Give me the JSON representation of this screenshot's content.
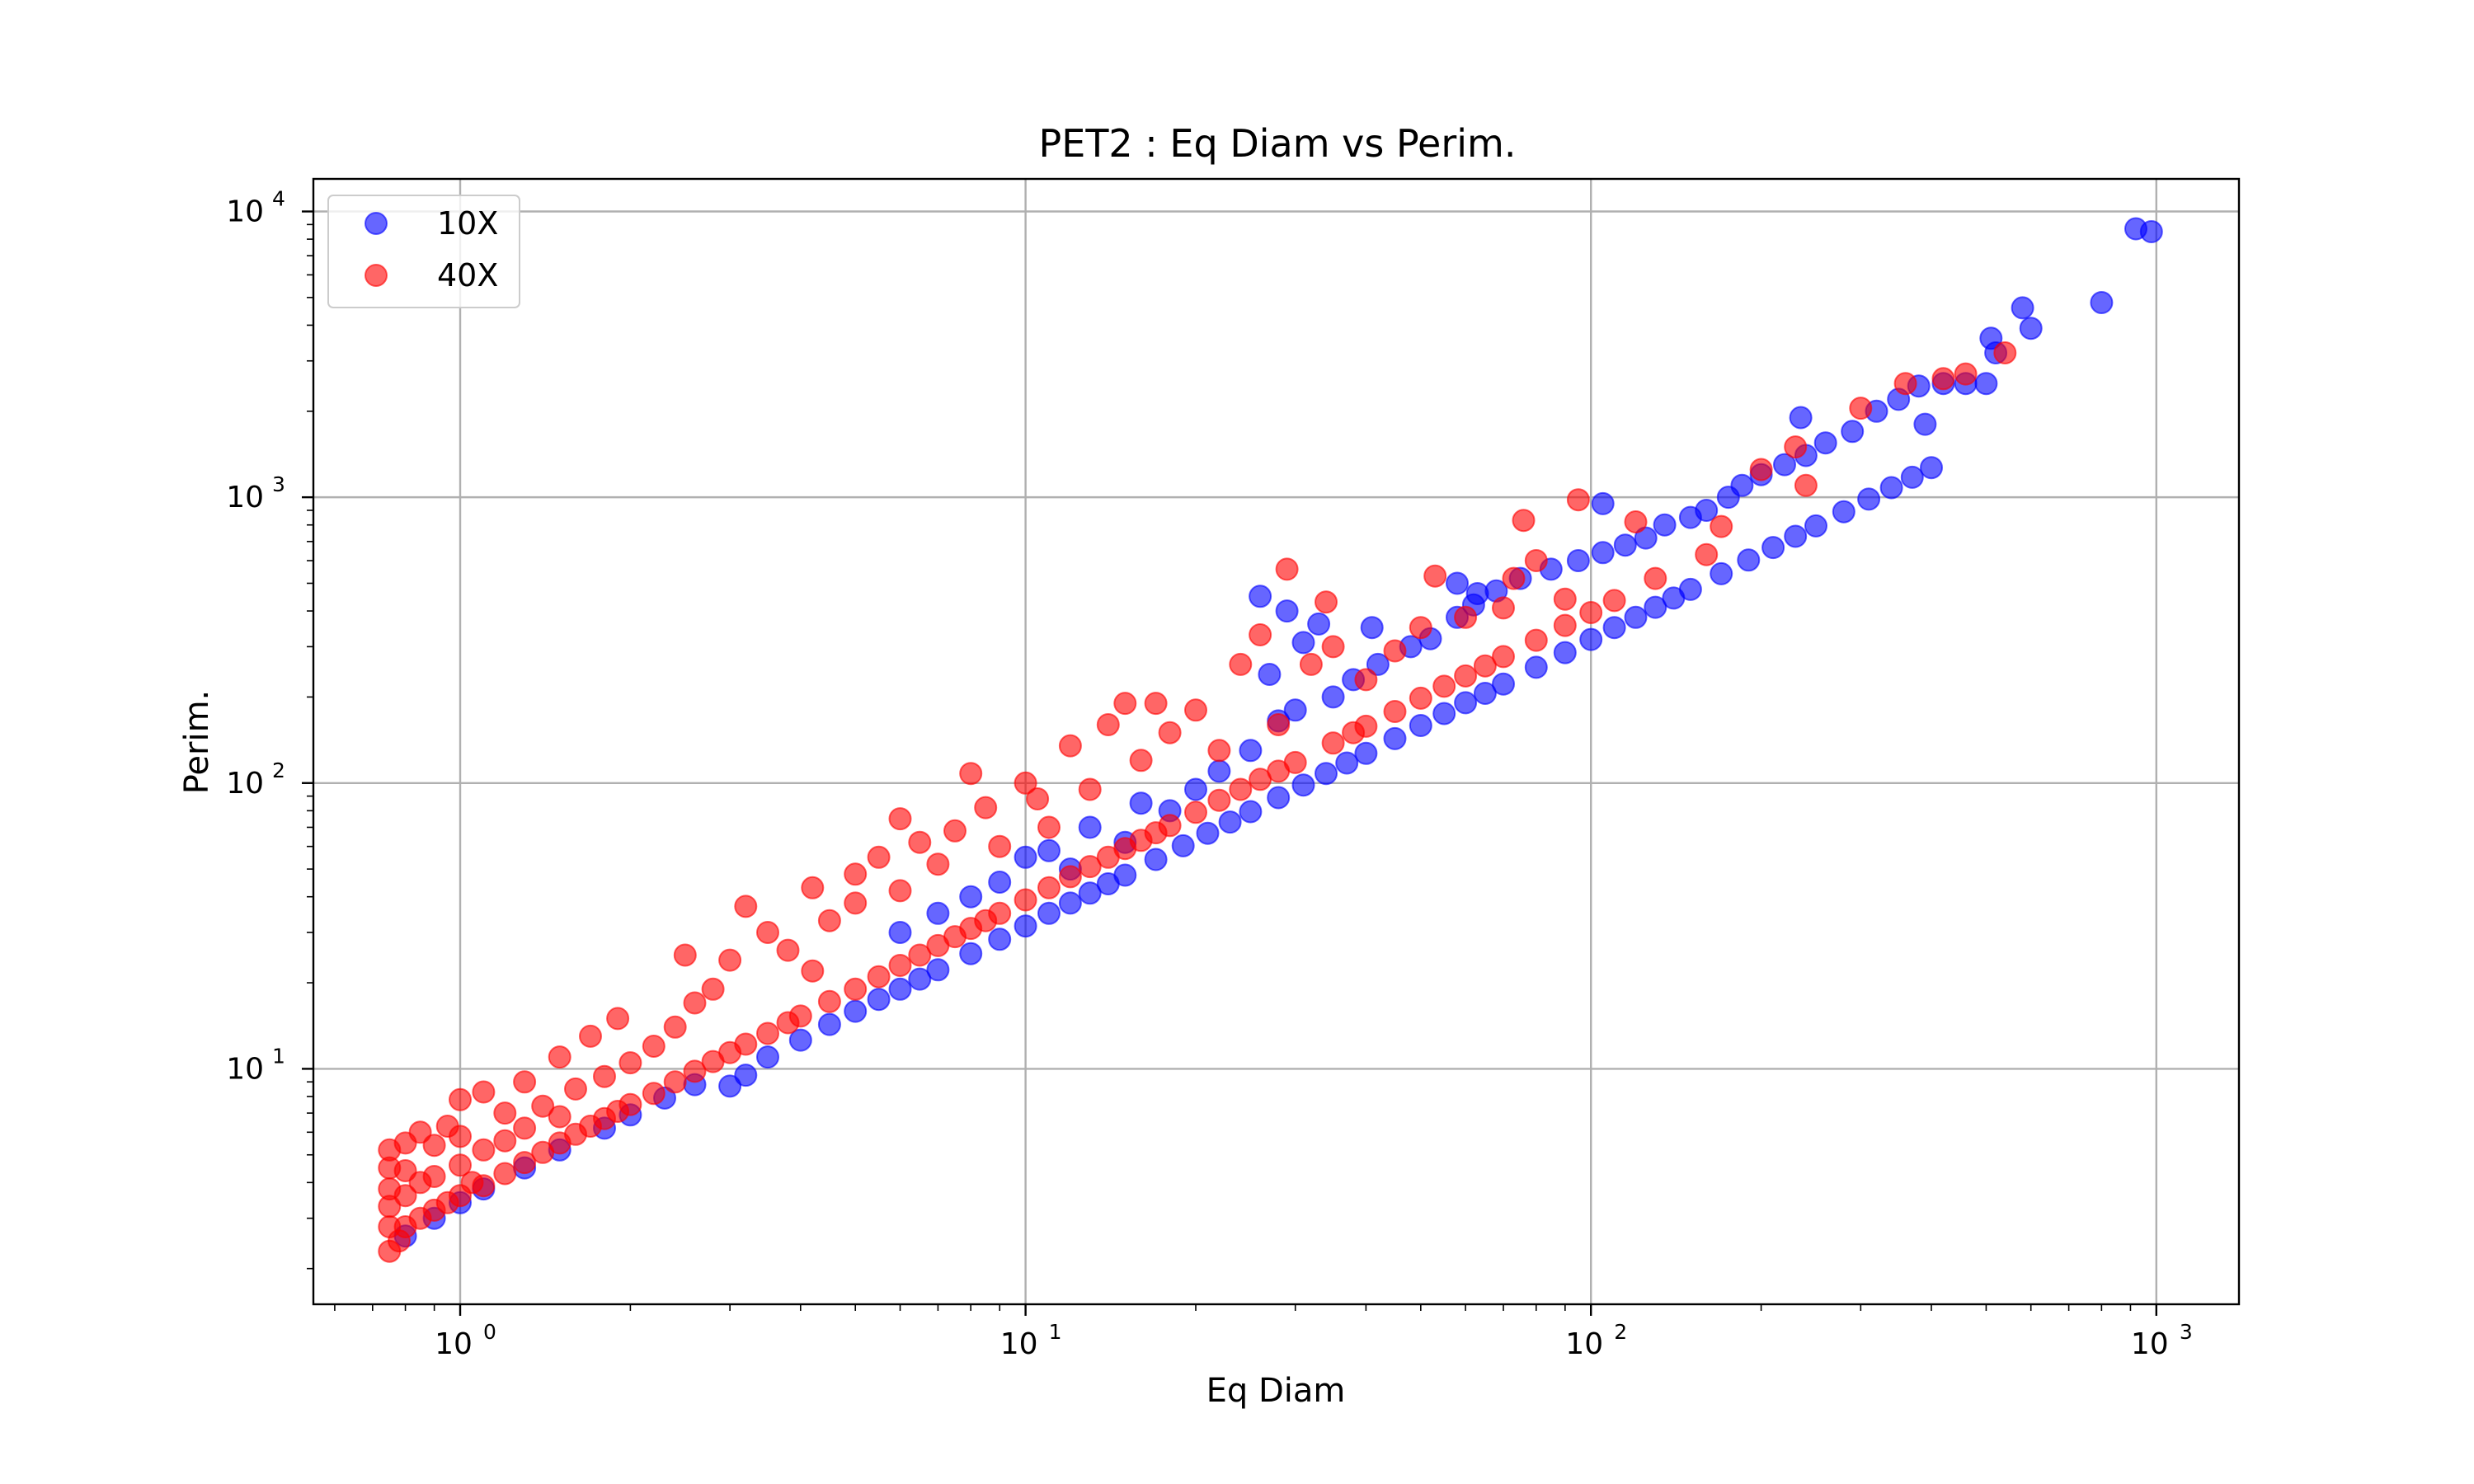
{
  "chart_data": {
    "type": "scatter",
    "title": "PET2 : Eq Diam vs Perim.",
    "xlabel": "Eq Diam",
    "ylabel": "Perim.",
    "xscale": "log",
    "yscale": "log",
    "xlim": [
      0.55,
      1400
    ],
    "ylim": [
      1.5,
      13000
    ],
    "grid": true,
    "legend_position": "upper-left",
    "x_ticks": [
      {
        "value": 1,
        "base": "10",
        "exp": "0"
      },
      {
        "value": 10,
        "base": "10",
        "exp": "1"
      },
      {
        "value": 100,
        "base": "10",
        "exp": "2"
      },
      {
        "value": 1000,
        "base": "10",
        "exp": "3"
      }
    ],
    "y_ticks": [
      {
        "value": 10,
        "base": "10",
        "exp": "1"
      },
      {
        "value": 100,
        "base": "10",
        "exp": "2"
      },
      {
        "value": 1000,
        "base": "10",
        "exp": "3"
      },
      {
        "value": 10000,
        "base": "10",
        "exp": "4"
      }
    ],
    "series": [
      {
        "name": "10X",
        "color": "#0000ff",
        "points": [
          [
            0.8,
            2.6
          ],
          [
            0.9,
            3.0
          ],
          [
            1.0,
            3.4
          ],
          [
            1.1,
            3.8
          ],
          [
            1.3,
            4.5
          ],
          [
            1.5,
            5.2
          ],
          [
            1.8,
            6.2
          ],
          [
            2.0,
            6.9
          ],
          [
            2.3,
            7.9
          ],
          [
            2.6,
            8.8
          ],
          [
            3.0,
            8.7
          ],
          [
            3.2,
            9.5
          ],
          [
            3.5,
            11.0
          ],
          [
            4.0,
            12.6
          ],
          [
            4.5,
            14.3
          ],
          [
            5.0,
            15.9
          ],
          [
            5.5,
            17.5
          ],
          [
            6.0,
            19.0
          ],
          [
            6.5,
            20.6
          ],
          [
            7.0,
            22.2
          ],
          [
            8.0,
            25.3
          ],
          [
            9.0,
            28.4
          ],
          [
            10.0,
            31.6
          ],
          [
            11.0,
            35.0
          ],
          [
            12.0,
            38.0
          ],
          [
            13.0,
            41.2
          ],
          [
            14.0,
            44.4
          ],
          [
            15.0,
            47.6
          ],
          [
            17.0,
            54.0
          ],
          [
            19.0,
            60.3
          ],
          [
            21.0,
            66.7
          ],
          [
            23.0,
            73.0
          ],
          [
            25.0,
            79.4
          ],
          [
            28.0,
            88.9
          ],
          [
            31.0,
            98.4
          ],
          [
            34.0,
            108.0
          ],
          [
            37.0,
            117.5
          ],
          [
            40.0,
            127.0
          ],
          [
            45.0,
            143.0
          ],
          [
            50.0,
            159.0
          ],
          [
            55.0,
            175.0
          ],
          [
            60.0,
            191.0
          ],
          [
            65.0,
            206.0
          ],
          [
            70.0,
            222.0
          ],
          [
            80.0,
            254.0
          ],
          [
            90.0,
            286.0
          ],
          [
            100.0,
            318.0
          ],
          [
            110.0,
            350.0
          ],
          [
            120.0,
            380.0
          ],
          [
            130.0,
            412.0
          ],
          [
            140.0,
            444.0
          ],
          [
            150.0,
            476.0
          ],
          [
            170.0,
            540.0
          ],
          [
            190.0,
            603.0
          ],
          [
            210.0,
            667.0
          ],
          [
            230.0,
            730.0
          ],
          [
            250.0,
            794.0
          ],
          [
            280.0,
            890.0
          ],
          [
            310.0,
            985.0
          ],
          [
            340.0,
            1080.0
          ],
          [
            370.0,
            1175.0
          ],
          [
            400.0,
            1270.0
          ],
          [
            12.0,
            50.0
          ],
          [
            15.0,
            62.0
          ],
          [
            18.0,
            80.0
          ],
          [
            20.0,
            95.0
          ],
          [
            22.0,
            110.0
          ],
          [
            25.0,
            130.0
          ],
          [
            28.0,
            165.0
          ],
          [
            30.0,
            180.0
          ],
          [
            35.0,
            200.0
          ],
          [
            38.0,
            230.0
          ],
          [
            42.0,
            260.0
          ],
          [
            48.0,
            300.0
          ],
          [
            52.0,
            320.0
          ],
          [
            58.0,
            380.0
          ],
          [
            62.0,
            420.0
          ],
          [
            68.0,
            470.0
          ],
          [
            75.0,
            520.0
          ],
          [
            85.0,
            560.0
          ],
          [
            95.0,
            600.0
          ],
          [
            105.0,
            640.0
          ],
          [
            115.0,
            680.0
          ],
          [
            125.0,
            720.0
          ],
          [
            135.0,
            800.0
          ],
          [
            150.0,
            850.0
          ],
          [
            160.0,
            900.0
          ],
          [
            175.0,
            1000.0
          ],
          [
            185.0,
            1100.0
          ],
          [
            200.0,
            1200.0
          ],
          [
            220.0,
            1300.0
          ],
          [
            240.0,
            1400.0
          ],
          [
            260.0,
            1550.0
          ],
          [
            290.0,
            1700.0
          ],
          [
            320.0,
            2000.0
          ],
          [
            350.0,
            2200.0
          ],
          [
            380.0,
            2450.0
          ],
          [
            420.0,
            2500.0
          ],
          [
            460.0,
            2500.0
          ],
          [
            500.0,
            2500.0
          ],
          [
            510.0,
            3600.0
          ],
          [
            520.0,
            3200.0
          ],
          [
            580.0,
            4600.0
          ],
          [
            600.0,
            3900.0
          ],
          [
            800.0,
            4800.0
          ],
          [
            920.0,
            8700.0
          ],
          [
            980.0,
            8500.0
          ],
          [
            26.0,
            450.0
          ],
          [
            29.0,
            400.0
          ],
          [
            33.0,
            360.0
          ],
          [
            27.0,
            240.0
          ],
          [
            31.0,
            310.0
          ],
          [
            41.0,
            350.0
          ],
          [
            58.0,
            500.0
          ],
          [
            63.0,
            460.0
          ],
          [
            105.0,
            950.0
          ],
          [
            235.0,
            1900.0
          ],
          [
            390.0,
            1800.0
          ],
          [
            6.0,
            30.0
          ],
          [
            7.0,
            35.0
          ],
          [
            8.0,
            40.0
          ],
          [
            9.0,
            45.0
          ],
          [
            10.0,
            55.0
          ],
          [
            11.0,
            58.0
          ],
          [
            13.0,
            70.0
          ],
          [
            16.0,
            85.0
          ]
        ]
      },
      {
        "name": "40X",
        "color": "#ff0000",
        "points": [
          [
            0.75,
            2.3
          ],
          [
            0.75,
            2.8
          ],
          [
            0.75,
            3.3
          ],
          [
            0.75,
            3.8
          ],
          [
            0.75,
            4.5
          ],
          [
            0.75,
            5.2
          ],
          [
            0.78,
            2.5
          ],
          [
            0.8,
            2.8
          ],
          [
            0.8,
            3.6
          ],
          [
            0.8,
            4.4
          ],
          [
            0.8,
            5.5
          ],
          [
            0.85,
            3.0
          ],
          [
            0.85,
            4.0
          ],
          [
            0.85,
            6.0
          ],
          [
            0.9,
            3.2
          ],
          [
            0.9,
            4.2
          ],
          [
            0.9,
            5.4
          ],
          [
            0.95,
            3.4
          ],
          [
            0.95,
            6.3
          ],
          [
            1.0,
            3.6
          ],
          [
            1.0,
            4.6
          ],
          [
            1.0,
            5.8
          ],
          [
            1.0,
            7.8
          ],
          [
            1.05,
            4.0
          ],
          [
            1.1,
            3.9
          ],
          [
            1.1,
            5.2
          ],
          [
            1.1,
            8.3
          ],
          [
            1.2,
            4.3
          ],
          [
            1.2,
            5.6
          ],
          [
            1.2,
            7.0
          ],
          [
            1.3,
            4.7
          ],
          [
            1.3,
            6.2
          ],
          [
            1.3,
            9.0
          ],
          [
            1.4,
            5.1
          ],
          [
            1.4,
            7.4
          ],
          [
            1.5,
            5.5
          ],
          [
            1.5,
            6.8
          ],
          [
            1.5,
            11.0
          ],
          [
            1.6,
            5.9
          ],
          [
            1.6,
            8.5
          ],
          [
            1.7,
            6.3
          ],
          [
            1.7,
            13.0
          ],
          [
            1.8,
            6.7
          ],
          [
            1.8,
            9.4
          ],
          [
            1.9,
            7.1
          ],
          [
            1.9,
            15.0
          ],
          [
            2.0,
            7.5
          ],
          [
            2.0,
            10.5
          ],
          [
            2.2,
            8.2
          ],
          [
            2.2,
            12.0
          ],
          [
            2.4,
            9.0
          ],
          [
            2.4,
            14.0
          ],
          [
            2.5,
            25.0
          ],
          [
            2.6,
            9.8
          ],
          [
            2.6,
            17.0
          ],
          [
            2.8,
            10.6
          ],
          [
            2.8,
            19.0
          ],
          [
            3.0,
            11.4
          ],
          [
            3.0,
            24.0
          ],
          [
            3.2,
            37.0
          ],
          [
            3.2,
            12.2
          ],
          [
            3.5,
            13.3
          ],
          [
            3.5,
            30.0
          ],
          [
            3.8,
            14.5
          ],
          [
            3.8,
            26.0
          ],
          [
            4.0,
            15.3
          ],
          [
            4.2,
            43.0
          ],
          [
            4.2,
            22.0
          ],
          [
            4.5,
            17.2
          ],
          [
            4.5,
            33.0
          ],
          [
            5.0,
            19.0
          ],
          [
            5.0,
            38.0
          ],
          [
            5.0,
            48.0
          ],
          [
            5.5,
            21.0
          ],
          [
            5.5,
            55.0
          ],
          [
            6.0,
            23.0
          ],
          [
            6.0,
            42.0
          ],
          [
            6.0,
            75.0
          ],
          [
            6.5,
            25.0
          ],
          [
            6.5,
            62.0
          ],
          [
            7.0,
            27.0
          ],
          [
            7.0,
            52.0
          ],
          [
            7.5,
            29.0
          ],
          [
            7.5,
            68.0
          ],
          [
            8.0,
            31.0
          ],
          [
            8.0,
            108.0
          ],
          [
            8.5,
            33.0
          ],
          [
            8.5,
            82.0
          ],
          [
            9.0,
            35.0
          ],
          [
            9.0,
            60.0
          ],
          [
            10.0,
            39.0
          ],
          [
            10.0,
            100.0
          ],
          [
            10.5,
            88.0
          ],
          [
            11.0,
            43.0
          ],
          [
            11.0,
            70.0
          ],
          [
            12.0,
            47.0
          ],
          [
            12.0,
            135.0
          ],
          [
            13.0,
            51.0
          ],
          [
            13.0,
            95.0
          ],
          [
            14.0,
            55.0
          ],
          [
            14.0,
            160.0
          ],
          [
            15.0,
            59.0
          ],
          [
            15.0,
            190.0
          ],
          [
            16.0,
            63.0
          ],
          [
            16.0,
            120.0
          ],
          [
            17.0,
            67.0
          ],
          [
            17.0,
            190.0
          ],
          [
            18.0,
            71.0
          ],
          [
            18.0,
            150.0
          ],
          [
            20.0,
            79.0
          ],
          [
            20.0,
            180.0
          ],
          [
            22.0,
            87.0
          ],
          [
            22.0,
            130.0
          ],
          [
            24.0,
            95.0
          ],
          [
            24.0,
            260.0
          ],
          [
            26.0,
            103.0
          ],
          [
            26.0,
            330.0
          ],
          [
            28.0,
            110.0
          ],
          [
            28.0,
            160.0
          ],
          [
            29.0,
            560.0
          ],
          [
            30.0,
            118.0
          ],
          [
            32.0,
            260.0
          ],
          [
            34.0,
            430.0
          ],
          [
            35.0,
            138.0
          ],
          [
            35.0,
            300.0
          ],
          [
            38.0,
            150.0
          ],
          [
            40.0,
            158.0
          ],
          [
            40.0,
            230.0
          ],
          [
            45.0,
            178.0
          ],
          [
            45.0,
            290.0
          ],
          [
            50.0,
            198.0
          ],
          [
            50.0,
            350.0
          ],
          [
            53.0,
            530.0
          ],
          [
            55.0,
            218.0
          ],
          [
            60.0,
            237.0
          ],
          [
            60.0,
            380.0
          ],
          [
            65.0,
            257.0
          ],
          [
            70.0,
            277.0
          ],
          [
            70.0,
            410.0
          ],
          [
            73.0,
            520.0
          ],
          [
            76.0,
            830.0
          ],
          [
            80.0,
            316.0
          ],
          [
            80.0,
            600.0
          ],
          [
            90.0,
            356.0
          ],
          [
            90.0,
            440.0
          ],
          [
            95.0,
            980.0
          ],
          [
            100.0,
            395.0
          ],
          [
            110.0,
            435.0
          ],
          [
            120.0,
            820.0
          ],
          [
            130.0,
            520.0
          ],
          [
            160.0,
            630.0
          ],
          [
            170.0,
            790.0
          ],
          [
            200.0,
            1250.0
          ],
          [
            230.0,
            1500.0
          ],
          [
            240.0,
            1100.0
          ],
          [
            300.0,
            2050.0
          ],
          [
            360.0,
            2500.0
          ],
          [
            420.0,
            2600.0
          ],
          [
            460.0,
            2700.0
          ],
          [
            540.0,
            3200.0
          ]
        ]
      }
    ]
  }
}
